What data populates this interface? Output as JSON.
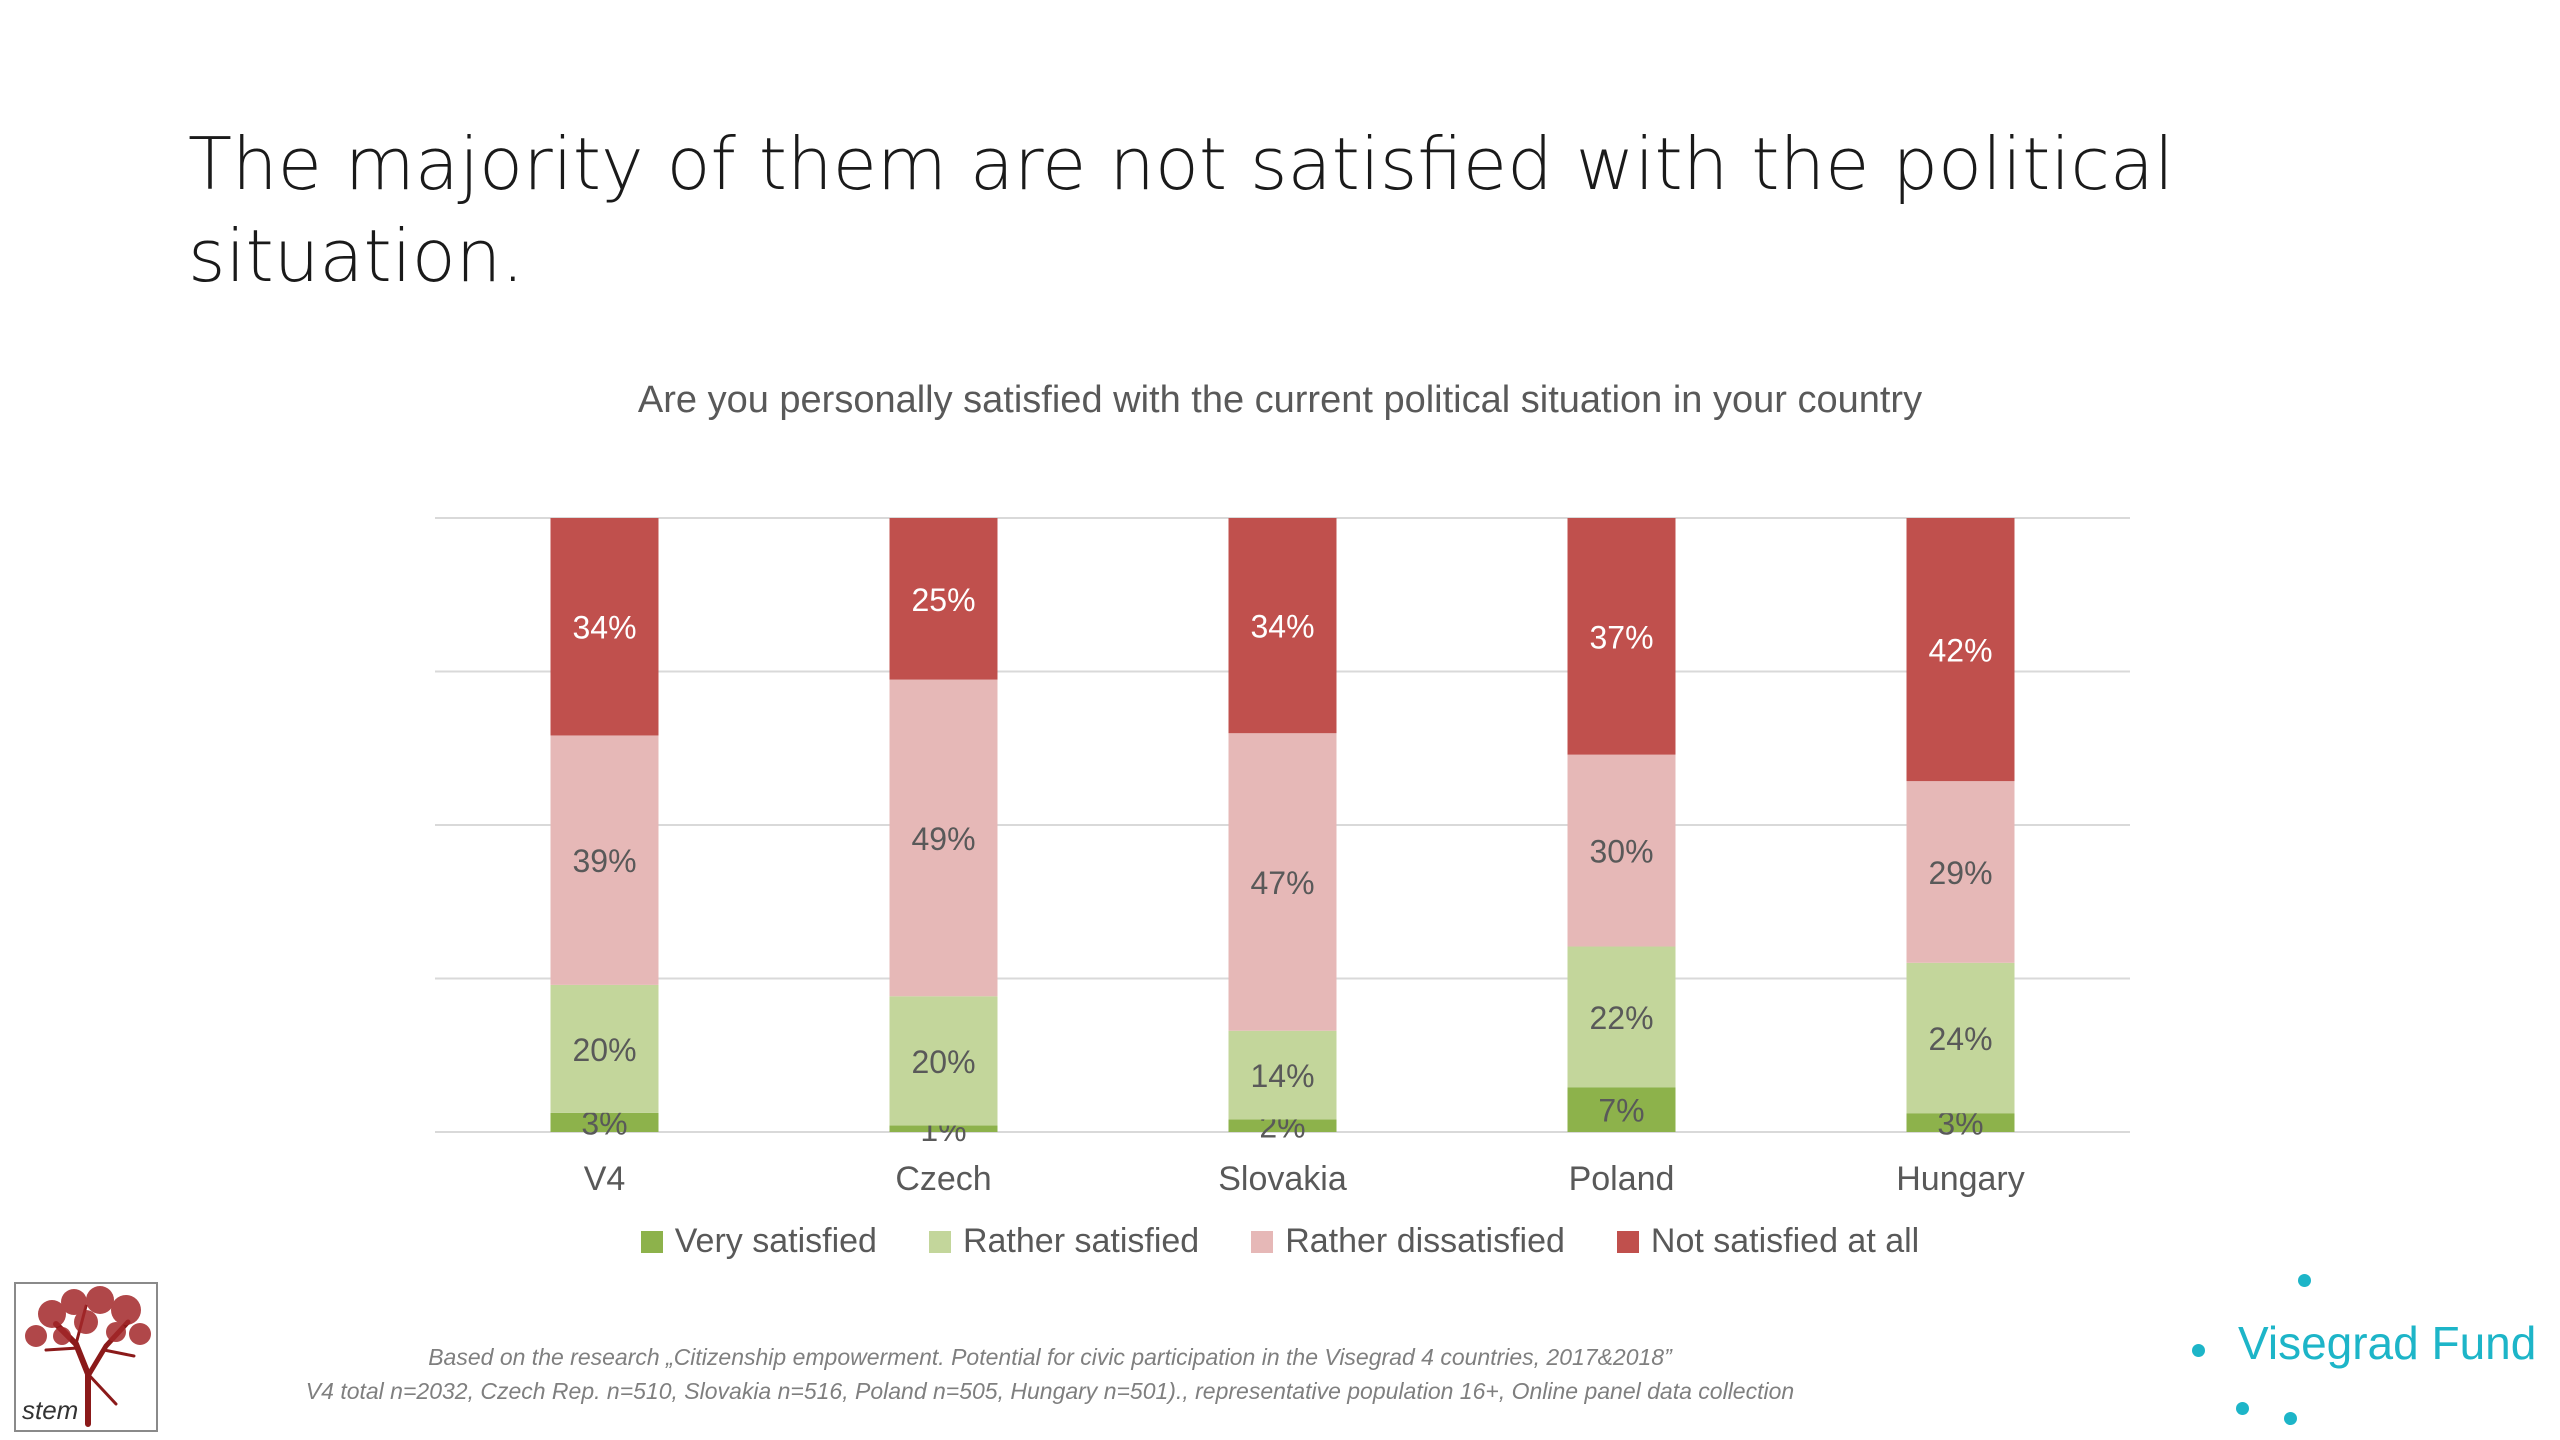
{
  "slide": {
    "title": "The majority of them are not satisfied with the political situation."
  },
  "colors": {
    "very_satisfied": "#8db24b",
    "rather_satisfied": "#c3d69b",
    "rather_dissatisfied": "#e6b8b7",
    "not_satisfied": "#c0504d",
    "text": "#595959",
    "grid": "#d9d9d9",
    "brand_teal": "#1db5c8"
  },
  "chart_data": {
    "type": "bar",
    "stacked": true,
    "title": "Are you personally satisfied with the current political situation in your country",
    "categories": [
      "V4",
      "Czech",
      "Slovakia",
      "Poland",
      "Hungary"
    ],
    "series": [
      {
        "name": "Very satisfied",
        "values": [
          3,
          1,
          2,
          7,
          3
        ],
        "color": "#8db24b"
      },
      {
        "name": "Rather satisfied",
        "values": [
          20,
          20,
          14,
          22,
          24
        ],
        "color": "#c3d69b"
      },
      {
        "name": "Rather dissatisfied",
        "values": [
          39,
          49,
          47,
          30,
          29
        ],
        "color": "#e6b8b7"
      },
      {
        "name": "Not satisfied at all",
        "values": [
          34,
          25,
          34,
          37,
          42
        ],
        "color": "#c0504d"
      }
    ],
    "value_suffix": "%",
    "gridlines": true,
    "legend_position": "bottom"
  },
  "footnote": {
    "line1": "Based on the research „Citizenship empowerment. Potential for civic participation in the Visegrad 4 countries, 2017&2018”",
    "line2": "V4 total n=2032, Czech Rep. n=510, Slovakia n=516, Poland n=505, Hungary n=501)., representative population 16+, Online panel data collection"
  },
  "logos": {
    "stem": "stem",
    "visegrad": "Visegrad Fund"
  }
}
